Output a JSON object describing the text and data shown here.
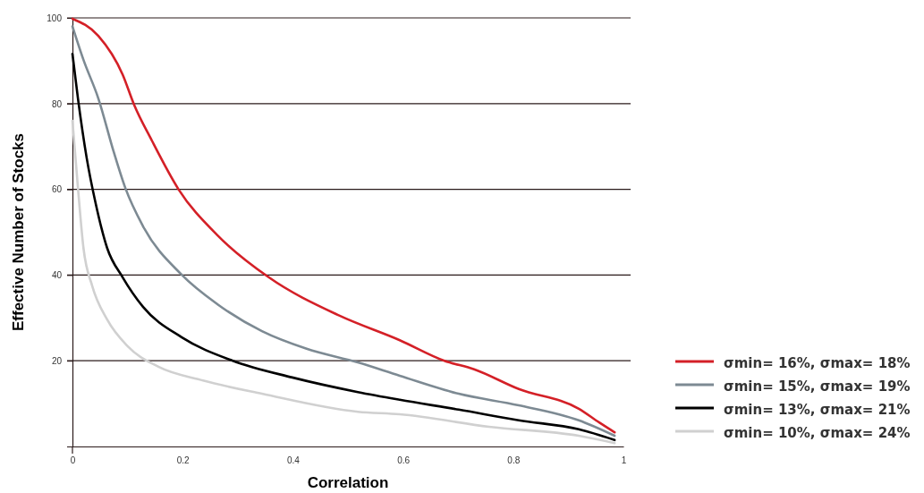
{
  "chart_data": {
    "type": "line",
    "xlabel": "Correlation",
    "ylabel": "Effective Number of Stocks",
    "xlim": [
      0,
      1
    ],
    "ylim": [
      0,
      100
    ],
    "xticks": [
      0,
      0.2,
      0.4,
      0.6,
      0.8,
      1
    ],
    "yticks": [
      {
        "value": 0,
        "label": null
      },
      20,
      40,
      60,
      80,
      100
    ],
    "grid": "y",
    "legend": "bottom right",
    "marker": "none",
    "line_style": "solid",
    "series": [
      {
        "name": "σmin= 16%, σmax= 18%",
        "color": "#d42027",
        "x": [
          0,
          0.047,
          0.091,
          0.112,
          0.144,
          0.193,
          0.263,
          0.356,
          0.485,
          0.594,
          0.675,
          0.729,
          0.81,
          0.919,
          0.956,
          0.984
        ],
        "values": [
          99.8,
          95.8,
          86.8,
          79.7,
          71.4,
          59.9,
          49.3,
          39.5,
          30.5,
          24.8,
          20.0,
          18.0,
          13.4,
          8.8,
          5.6,
          3.3
        ]
      },
      {
        "name": "σmin= 15%, σmax= 19%",
        "color": "#7d8a93",
        "x": [
          0,
          0.02,
          0.047,
          0.075,
          0.096,
          0.128,
          0.198,
          0.263,
          0.344,
          0.425,
          0.518,
          0.594,
          0.701,
          0.81,
          0.919,
          0.984
        ],
        "values": [
          98,
          90.2,
          81.2,
          68.7,
          60.3,
          51.4,
          40.1,
          33.2,
          26.9,
          22.8,
          19.6,
          16.5,
          12.3,
          9.6,
          6.1,
          2.5
        ]
      },
      {
        "name": "σmin= 13%, σmax= 21%",
        "color": "#000000",
        "x": [
          0,
          0.01,
          0.026,
          0.042,
          0.063,
          0.091,
          0.128,
          0.198,
          0.291,
          0.399,
          0.518,
          0.594,
          0.701,
          0.81,
          0.919,
          0.984
        ],
        "values": [
          91.6,
          81.2,
          67.2,
          56.8,
          46.3,
          39.5,
          32.6,
          25.5,
          20.0,
          16.1,
          12.7,
          10.9,
          8.6,
          6.1,
          4.0,
          1.5
        ]
      },
      {
        "name": "σmin= 10%, σmax= 24%",
        "color": "#d0d0d0",
        "x": [
          0,
          0.01,
          0.02,
          0.036,
          0.063,
          0.1,
          0.156,
          0.237,
          0.344,
          0.518,
          0.594,
          0.756,
          0.919,
          0.984
        ],
        "values": [
          76,
          60.3,
          46.3,
          37.4,
          29.6,
          23.4,
          18.6,
          15.4,
          12.3,
          8.1,
          7.5,
          4.6,
          2.5,
          0.8
        ]
      }
    ]
  }
}
